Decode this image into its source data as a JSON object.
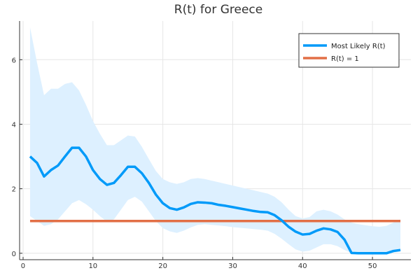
{
  "chart_data": {
    "type": "line",
    "title": "R(t) for Greece",
    "xlabel": "",
    "ylabel": "",
    "xlim": [
      -0.5,
      55.5
    ],
    "ylim": [
      -0.2,
      7.2
    ],
    "xticks": [
      0,
      10,
      20,
      30,
      40,
      50
    ],
    "yticks": [
      0,
      2,
      4,
      6
    ],
    "grid": true,
    "legend_position": "top-right",
    "series": [
      {
        "name": "Most Likely R(t)",
        "color": "#009af9",
        "x": [
          1,
          2,
          3,
          4,
          5,
          6,
          7,
          8,
          9,
          10,
          11,
          12,
          13,
          14,
          15,
          16,
          17,
          18,
          19,
          20,
          21,
          22,
          23,
          24,
          25,
          26,
          27,
          28,
          29,
          30,
          31,
          32,
          33,
          34,
          35,
          36,
          37,
          38,
          39,
          40,
          41,
          42,
          43,
          44,
          45,
          46,
          47,
          48,
          49,
          50,
          51,
          52,
          53,
          54
        ],
        "y": [
          3.0,
          2.8,
          2.38,
          2.58,
          2.72,
          3.0,
          3.27,
          3.27,
          3.0,
          2.58,
          2.3,
          2.12,
          2.18,
          2.42,
          2.68,
          2.68,
          2.48,
          2.18,
          1.82,
          1.55,
          1.4,
          1.35,
          1.42,
          1.53,
          1.58,
          1.57,
          1.55,
          1.5,
          1.47,
          1.43,
          1.39,
          1.35,
          1.31,
          1.28,
          1.27,
          1.18,
          1.02,
          0.82,
          0.67,
          0.58,
          0.6,
          0.7,
          0.77,
          0.74,
          0.66,
          0.42,
          0.01,
          0.0,
          0.0,
          0.0,
          0.0,
          0.0,
          0.07,
          0.1
        ]
      },
      {
        "name": "R(t) = 1",
        "color": "#e26f46",
        "x": [
          1,
          54
        ],
        "y": [
          1.0,
          1.0
        ]
      }
    ],
    "band": {
      "color": "#ddf0ff",
      "x": [
        1,
        2,
        3,
        4,
        5,
        6,
        7,
        8,
        9,
        10,
        11,
        12,
        13,
        14,
        15,
        16,
        17,
        18,
        19,
        20,
        21,
        22,
        23,
        24,
        25,
        26,
        27,
        28,
        29,
        30,
        31,
        32,
        33,
        34,
        35,
        36,
        37,
        38,
        39,
        40,
        41,
        42,
        43,
        44,
        45,
        46,
        47,
        48,
        49,
        50,
        51,
        52,
        53,
        54
      ],
      "upper": [
        7.0,
        5.9,
        4.9,
        5.1,
        5.1,
        5.25,
        5.3,
        5.05,
        4.6,
        4.1,
        3.7,
        3.35,
        3.35,
        3.5,
        3.65,
        3.62,
        3.3,
        2.92,
        2.55,
        2.3,
        2.2,
        2.15,
        2.2,
        2.3,
        2.33,
        2.3,
        2.25,
        2.2,
        2.15,
        2.1,
        2.05,
        2.0,
        1.95,
        1.9,
        1.85,
        1.75,
        1.58,
        1.35,
        1.15,
        1.08,
        1.12,
        1.3,
        1.35,
        1.3,
        1.2,
        1.05,
        0.95,
        0.9,
        0.87,
        0.84,
        0.82,
        0.85,
        0.95,
        1.05
      ],
      "lower": [
        1.15,
        1.0,
        0.85,
        0.9,
        1.05,
        1.3,
        1.55,
        1.65,
        1.52,
        1.35,
        1.15,
        0.98,
        1.05,
        1.35,
        1.65,
        1.75,
        1.6,
        1.3,
        1.0,
        0.78,
        0.68,
        0.63,
        0.7,
        0.8,
        0.88,
        0.9,
        0.88,
        0.86,
        0.84,
        0.81,
        0.79,
        0.77,
        0.75,
        0.73,
        0.7,
        0.6,
        0.45,
        0.28,
        0.12,
        0.05,
        0.08,
        0.18,
        0.28,
        0.28,
        0.22,
        0.1,
        0.0,
        0.0,
        0.0,
        0.0,
        0.0,
        0.0,
        0.02,
        0.05
      ]
    }
  }
}
